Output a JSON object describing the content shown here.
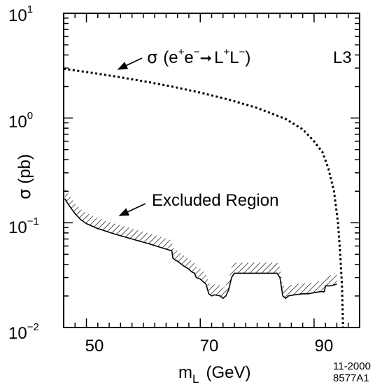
{
  "chart_data": {
    "type": "line",
    "y_scale": "log",
    "xlim": [
      46,
      98
    ],
    "ylim": [
      0.01,
      10
    ],
    "x_ticks": [
      50,
      70,
      90
    ],
    "x_tick_labels": [
      "50",
      "70",
      "90"
    ],
    "y_ticks": [
      {
        "value": 10,
        "base": "10",
        "exp": "1"
      },
      {
        "value": 1,
        "base": "10",
        "exp": "0"
      },
      {
        "value": 0.1,
        "base": "10",
        "exp": "−1"
      },
      {
        "value": 0.01,
        "base": "10",
        "exp": "−2"
      }
    ],
    "xlabel": {
      "main": "m",
      "sub": "L",
      "unit": "(GeV)"
    },
    "ylabel": {
      "symbol": "σ",
      "unit": "(pb)"
    },
    "experiment_label": "L3",
    "series": [
      {
        "style": "dotted",
        "points": [
          [
            46,
            2.95
          ],
          [
            50,
            2.75
          ],
          [
            55,
            2.5
          ],
          [
            60,
            2.25
          ],
          [
            65,
            2.0
          ],
          [
            70,
            1.75
          ],
          [
            75,
            1.5
          ],
          [
            80,
            1.25
          ],
          [
            85,
            0.98
          ],
          [
            88,
            0.78
          ],
          [
            90,
            0.6
          ],
          [
            91.5,
            0.47
          ],
          [
            92.5,
            0.33
          ],
          [
            93.5,
            0.2
          ],
          [
            94.2,
            0.1
          ],
          [
            94.6,
            0.05
          ],
          [
            94.9,
            0.025
          ],
          [
            95.1,
            0.01
          ]
        ]
      },
      {
        "style": "solid-hatched",
        "points": [
          [
            46.2,
            0.17
          ],
          [
            47,
            0.145
          ],
          [
            48,
            0.122
          ],
          [
            49,
            0.107
          ],
          [
            50,
            0.098
          ],
          [
            52,
            0.088
          ],
          [
            55,
            0.078
          ],
          [
            58,
            0.07
          ],
          [
            61,
            0.063
          ],
          [
            64,
            0.056
          ],
          [
            65,
            0.054
          ],
          [
            65.2,
            0.046
          ],
          [
            65.6,
            0.044
          ],
          [
            66,
            0.043
          ],
          [
            67,
            0.039
          ],
          [
            68,
            0.036
          ],
          [
            68.5,
            0.034
          ],
          [
            69,
            0.033
          ],
          [
            69.3,
            0.03
          ],
          [
            70,
            0.029
          ],
          [
            71,
            0.026
          ],
          [
            71.5,
            0.021
          ],
          [
            72,
            0.02
          ],
          [
            72.5,
            0.0205
          ],
          [
            73.5,
            0.02
          ],
          [
            74,
            0.019
          ],
          [
            74.5,
            0.02
          ],
          [
            75,
            0.023
          ],
          [
            75.5,
            0.03
          ],
          [
            76,
            0.033
          ],
          [
            78,
            0.033
          ],
          [
            80,
            0.033
          ],
          [
            82,
            0.033
          ],
          [
            83.5,
            0.033
          ],
          [
            84,
            0.03
          ],
          [
            84.5,
            0.02
          ],
          [
            85,
            0.019
          ],
          [
            85.5,
            0.02
          ],
          [
            86.5,
            0.0205
          ],
          [
            88,
            0.021
          ],
          [
            89,
            0.021
          ],
          [
            90,
            0.0215
          ],
          [
            91,
            0.022
          ],
          [
            91.8,
            0.022
          ],
          [
            92,
            0.025
          ],
          [
            93,
            0.025
          ],
          [
            94,
            0.026
          ]
        ]
      }
    ],
    "annotations": [
      {
        "id": "sigma",
        "prefix": "σ",
        "open": "(e",
        "sup1": "+",
        "mid": "e",
        "sup2": "−",
        "arrow": "➞",
        "l1": "L",
        "sup3": "+",
        "l2": "L",
        "sup4": "−",
        "close": ")"
      },
      {
        "id": "excluded",
        "text": "Excluded Region"
      }
    ],
    "footer": {
      "date": "11-2000",
      "code": "8577A1"
    }
  }
}
